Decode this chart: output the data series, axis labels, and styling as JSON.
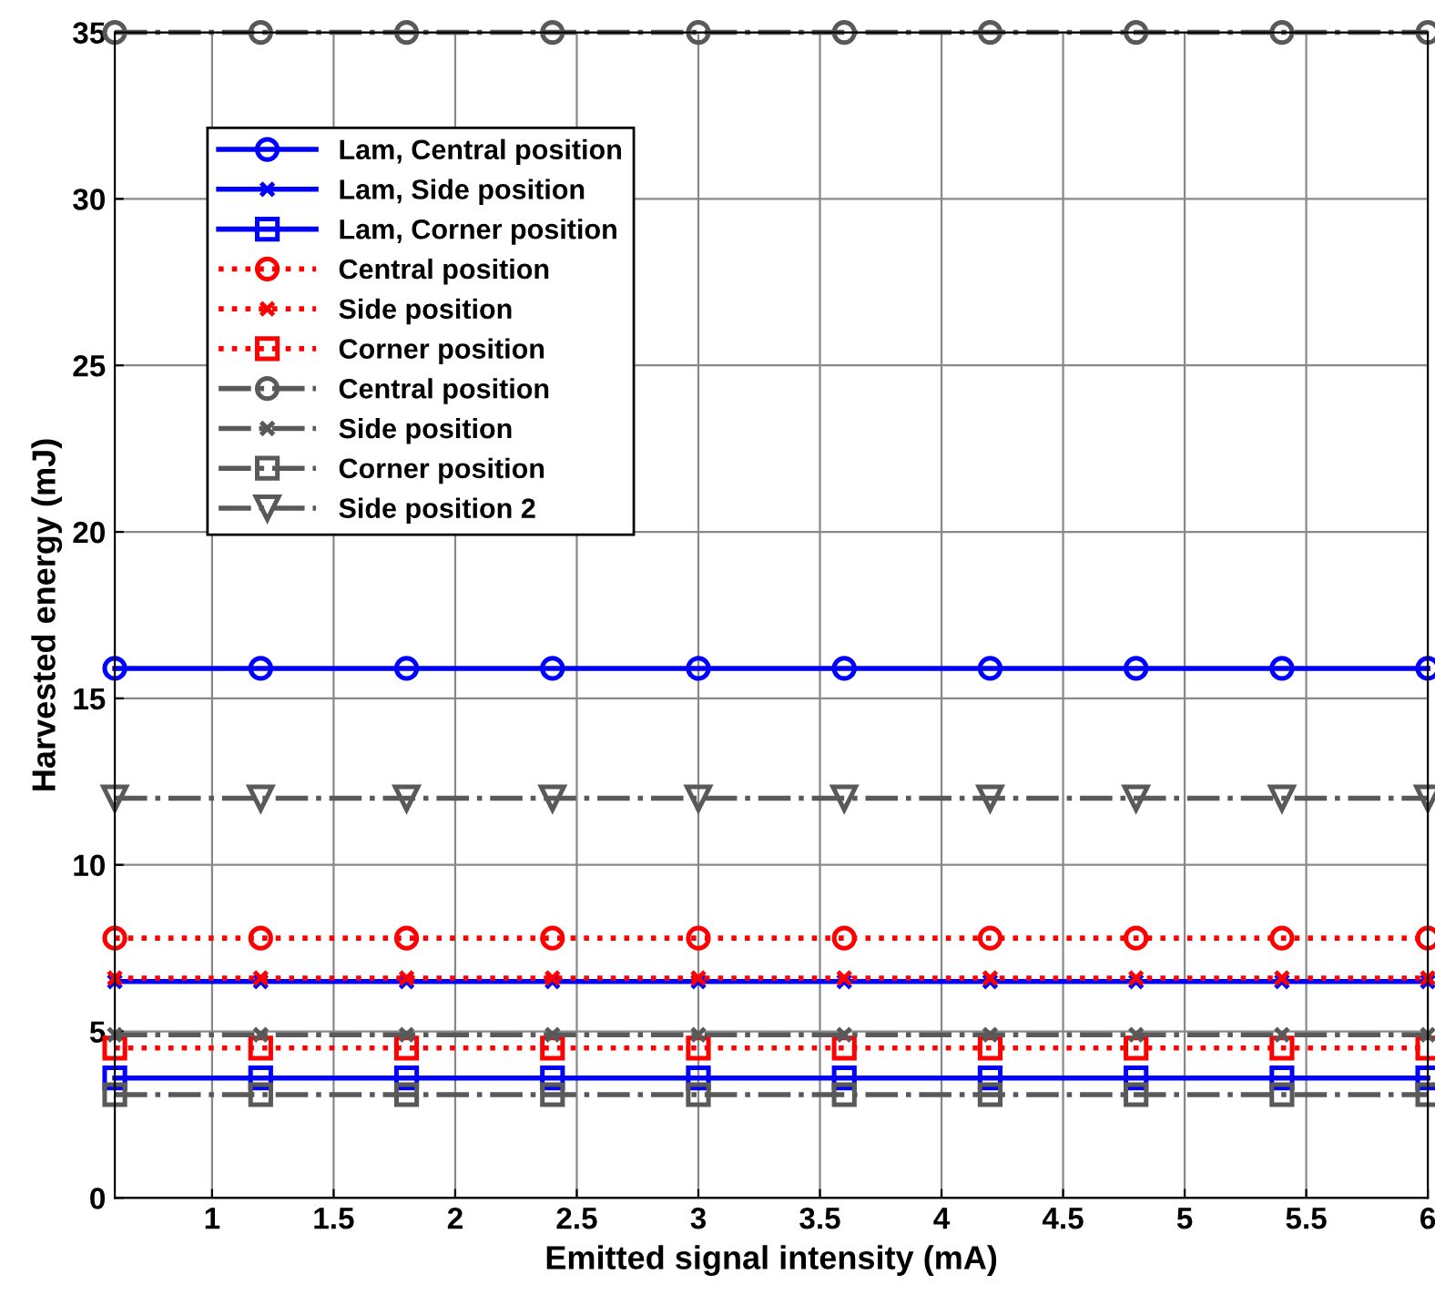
{
  "chart_data": {
    "type": "line",
    "xlabel": "Emitted signal intensity (mA)",
    "ylabel": "Harvested energy (mJ)",
    "x": [
      0.6,
      1.2,
      1.8,
      2.4,
      3.0,
      3.6,
      4.2,
      4.8,
      5.4,
      6.0
    ],
    "xlim": [
      0.6,
      6
    ],
    "xticks": [
      1,
      1.5,
      2,
      2.5,
      3,
      3.5,
      4,
      4.5,
      5,
      5.5,
      6
    ],
    "ylim": [
      0,
      35
    ],
    "yticks": [
      0,
      5,
      10,
      15,
      20,
      25,
      30,
      35
    ],
    "grid": true,
    "legend": "top left",
    "series": [
      {
        "name": "Lam, Central position",
        "color": "#0000ff",
        "marker": "circle",
        "line_style": "solid",
        "values": [
          15.9,
          15.9,
          15.9,
          15.9,
          15.9,
          15.9,
          15.9,
          15.9,
          15.9,
          15.9
        ]
      },
      {
        "name": "Lam, Side position",
        "color": "#0000ff",
        "marker": "cross",
        "line_style": "solid",
        "values": [
          6.5,
          6.5,
          6.5,
          6.5,
          6.5,
          6.5,
          6.5,
          6.5,
          6.5,
          6.5
        ]
      },
      {
        "name": "Lam, Corner position",
        "color": "#0000ff",
        "marker": "square",
        "line_style": "solid",
        "values": [
          3.6,
          3.6,
          3.6,
          3.6,
          3.6,
          3.6,
          3.6,
          3.6,
          3.6,
          3.6
        ]
      },
      {
        "name": "Central position",
        "color": "#ff0000",
        "marker": "circle",
        "line_style": "dotted",
        "values": [
          7.8,
          7.8,
          7.8,
          7.8,
          7.8,
          7.8,
          7.8,
          7.8,
          7.8,
          7.8
        ]
      },
      {
        "name": "Side position",
        "color": "#ff0000",
        "marker": "cross",
        "line_style": "dotted",
        "values": [
          6.6,
          6.6,
          6.6,
          6.6,
          6.6,
          6.6,
          6.6,
          6.6,
          6.6,
          6.6
        ]
      },
      {
        "name": "Corner position",
        "color": "#ff0000",
        "marker": "square",
        "line_style": "dotted",
        "values": [
          4.5,
          4.5,
          4.5,
          4.5,
          4.5,
          4.5,
          4.5,
          4.5,
          4.5,
          4.5
        ]
      },
      {
        "name": "Central position",
        "color": "#595959",
        "marker": "circle",
        "line_style": "dashdot",
        "values": [
          35,
          35,
          35,
          35,
          35,
          35,
          35,
          35,
          35,
          35
        ]
      },
      {
        "name": "Side position",
        "color": "#595959",
        "marker": "cross",
        "line_style": "dashdot",
        "values": [
          4.9,
          4.9,
          4.9,
          4.9,
          4.9,
          4.9,
          4.9,
          4.9,
          4.9,
          4.9
        ]
      },
      {
        "name": "Corner position",
        "color": "#595959",
        "marker": "square",
        "line_style": "dashdot",
        "values": [
          3.1,
          3.1,
          3.1,
          3.1,
          3.1,
          3.1,
          3.1,
          3.1,
          3.1,
          3.1
        ]
      },
      {
        "name": "Side position 2",
        "color": "#595959",
        "marker": "triangle",
        "line_style": "dashdot",
        "values": [
          12.0,
          12.0,
          12.0,
          12.0,
          12.0,
          12.0,
          12.0,
          12.0,
          12.0,
          12.0
        ]
      }
    ]
  }
}
